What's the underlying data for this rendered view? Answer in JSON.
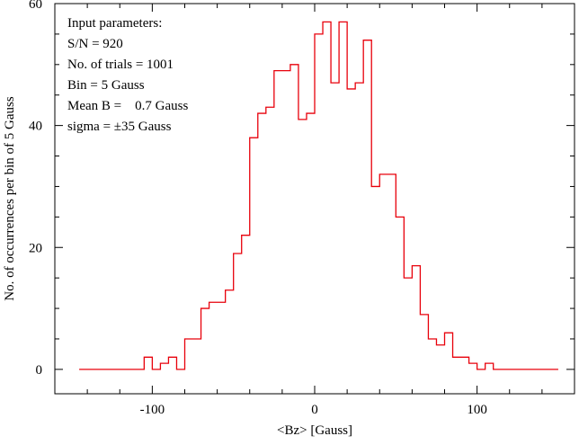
{
  "chart_data": {
    "type": "histogram",
    "xlabel": "<Bz> [Gauss]",
    "ylabel": "No. of occurrences per bin of 5 Gauss",
    "xlim": [
      -160,
      160
    ],
    "ylim": [
      -4,
      60
    ],
    "xticks": [
      -100,
      0,
      100
    ],
    "xtick_labels": [
      "-100",
      "0",
      "100"
    ],
    "yticks": [
      0,
      20,
      40,
      60
    ],
    "ytick_labels": [
      "0",
      "20",
      "40",
      "60"
    ],
    "grid": false,
    "line_color": "#e8000b",
    "annotations": [
      "Input parameters:",
      "S/N = 920",
      "No. of trials = 1001",
      "Bin = 5 Gauss",
      "Mean B =    0.7 Gauss",
      "sigma = ±35 Gauss"
    ],
    "bin_width": 5,
    "bin_starts": [
      -145,
      -140,
      -135,
      -130,
      -125,
      -120,
      -115,
      -110,
      -105,
      -100,
      -95,
      -90,
      -85,
      -80,
      -75,
      -70,
      -65,
      -60,
      -55,
      -50,
      -45,
      -40,
      -35,
      -30,
      -25,
      -20,
      -15,
      -10,
      -5,
      0,
      5,
      10,
      15,
      20,
      25,
      30,
      35,
      40,
      45,
      50,
      55,
      60,
      65,
      70,
      75,
      80,
      85,
      90,
      95,
      100,
      105,
      110,
      115,
      120,
      125,
      130,
      135,
      140,
      145
    ],
    "counts": [
      0,
      0,
      0,
      0,
      0,
      0,
      0,
      0,
      2,
      0,
      1,
      2,
      0,
      5,
      5,
      10,
      11,
      11,
      13,
      19,
      22,
      38,
      42,
      43,
      49,
      49,
      50,
      41,
      42,
      55,
      57,
      47,
      57,
      46,
      47,
      54,
      30,
      32,
      32,
      25,
      15,
      17,
      9,
      5,
      4,
      6,
      2,
      2,
      1,
      0,
      1,
      0,
      0,
      0,
      0,
      0,
      0,
      0,
      0
    ]
  }
}
